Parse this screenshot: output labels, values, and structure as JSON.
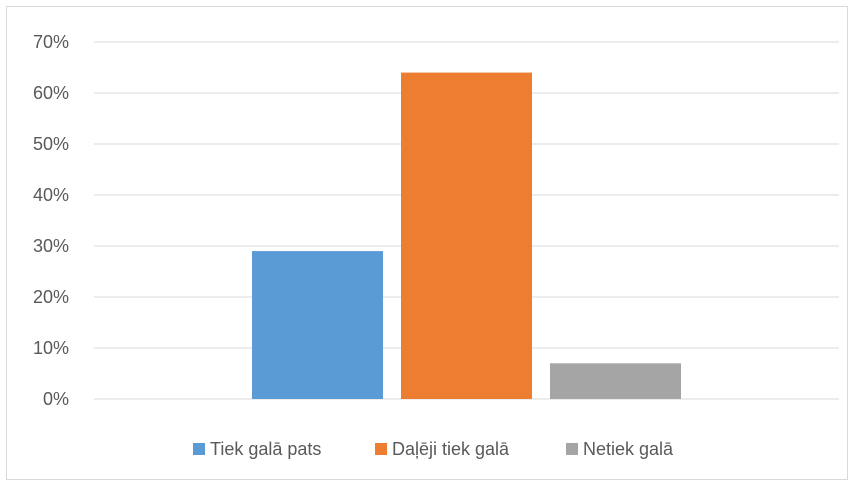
{
  "chart_data": {
    "type": "bar",
    "categories": [
      "Tiek galā pats",
      "Daļēji tiek galā",
      "Netiek galā"
    ],
    "values": [
      29,
      64,
      7
    ],
    "colors": [
      "#5b9bd5",
      "#ed7d31",
      "#a5a5a5"
    ],
    "ylim": [
      0,
      70
    ],
    "y_ticks": [
      "0%",
      "10%",
      "20%",
      "30%",
      "40%",
      "50%",
      "60%",
      "70%"
    ],
    "grid": true,
    "legend_position": "bottom",
    "legend": [
      "Tiek galā pats",
      "Daļēji tiek galā",
      "Netiek galā"
    ]
  }
}
